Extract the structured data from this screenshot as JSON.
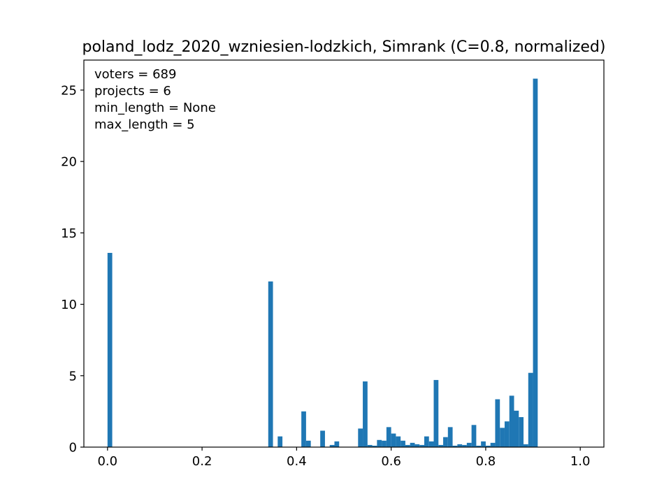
{
  "chart_data": {
    "type": "bar",
    "title": "poland_lodz_2020_wzniesien-lodzkich, Simrank (C=0.8, normalized)",
    "xlabel": "",
    "ylabel": "",
    "xlim": [
      -0.05,
      1.05
    ],
    "ylim": [
      0,
      27.1
    ],
    "bin_width": 0.01,
    "xticks": [
      0.0,
      0.2,
      0.4,
      0.6,
      0.8,
      1.0
    ],
    "xtick_labels": [
      "0.0",
      "0.2",
      "0.4",
      "0.6",
      "0.8",
      "1.0"
    ],
    "yticks": [
      0,
      5,
      10,
      15,
      20,
      25
    ],
    "ytick_labels": [
      "0",
      "5",
      "10",
      "15",
      "20",
      "25"
    ],
    "grid": false,
    "bar_color": "#1f77b4",
    "annotations": [
      "voters = 689",
      "projects = 6",
      "min_length = None",
      "max_length = 5"
    ],
    "bin_starts": [
      0.0,
      0.34,
      0.36,
      0.41,
      0.42,
      0.45,
      0.47,
      0.48,
      0.53,
      0.54,
      0.55,
      0.56,
      0.57,
      0.58,
      0.59,
      0.6,
      0.61,
      0.62,
      0.63,
      0.64,
      0.65,
      0.66,
      0.67,
      0.68,
      0.69,
      0.7,
      0.71,
      0.72,
      0.73,
      0.74,
      0.75,
      0.76,
      0.77,
      0.78,
      0.79,
      0.8,
      0.81,
      0.82,
      0.83,
      0.84,
      0.85,
      0.86,
      0.87,
      0.88,
      0.89,
      0.9
    ],
    "values": [
      13.6,
      11.6,
      0.75,
      2.5,
      0.45,
      1.15,
      0.15,
      0.4,
      1.3,
      4.6,
      0.15,
      0.1,
      0.5,
      0.45,
      1.4,
      0.95,
      0.75,
      0.45,
      0.15,
      0.3,
      0.2,
      0.15,
      0.75,
      0.4,
      4.7,
      0.15,
      0.7,
      1.4,
      0.1,
      0.2,
      0.15,
      0.3,
      1.55,
      0.1,
      0.4,
      0.1,
      0.3,
      3.35,
      1.35,
      1.8,
      3.6,
      2.55,
      2.1,
      0.2,
      5.2,
      25.8
    ]
  }
}
